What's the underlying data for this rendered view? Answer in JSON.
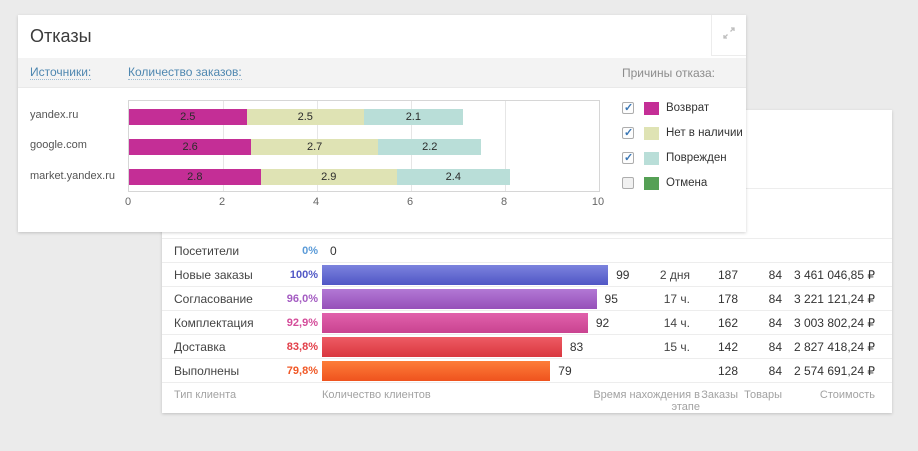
{
  "page": {
    "background": "#ebebeb"
  },
  "rejections_panel": {
    "title": "Отказы",
    "sources_link": "Источники:",
    "orders_link": "Количество заказов:",
    "legend_title": "Причины отказа:",
    "legend": [
      {
        "label": "Возврат",
        "color": "#c42e96",
        "checked": true
      },
      {
        "label": "Нет в наличии",
        "color": "#dfe3b4",
        "checked": true
      },
      {
        "label": "Поврежден",
        "color": "#b9ded8",
        "checked": true
      },
      {
        "label": "Отмена",
        "color": "#55a055",
        "checked": false
      }
    ]
  },
  "funnel_panel": {
    "footer": {
      "col_client_type": "Тип клиента",
      "col_client_count": "Количество клиентов",
      "col_time": "Время нахождения в этапе",
      "col_orders": "Заказы",
      "col_items": "Товары",
      "col_cost": "Стоимость"
    }
  },
  "chart_data": [
    {
      "type": "bar",
      "orientation": "horizontal",
      "stacked": true,
      "title": "Отказы",
      "categories": [
        "yandex.ru",
        "google.com",
        "market.yandex.ru"
      ],
      "series": [
        {
          "name": "Возврат",
          "color": "#c42e96",
          "values": [
            2.5,
            2.6,
            2.8
          ]
        },
        {
          "name": "Нет в наличии",
          "color": "#dfe3b4",
          "values": [
            2.5,
            2.7,
            2.9
          ]
        },
        {
          "name": "Поврежден",
          "color": "#b9ded8",
          "values": [
            2.1,
            2.2,
            2.4
          ]
        }
      ],
      "xlim": [
        0,
        10
      ],
      "ticks": [
        0,
        2,
        4,
        6,
        8,
        10
      ],
      "grid": true,
      "legend_position": "right"
    },
    {
      "type": "bar",
      "orientation": "horizontal",
      "subtype": "funnel",
      "xlabel": "Количество клиентов",
      "rows": [
        {
          "label": "Посетители",
          "percent": "0%",
          "percent_color": "#5b9bd8",
          "value": 0,
          "time": "",
          "orders": "",
          "items": "",
          "cost": ""
        },
        {
          "label": "Новые заказы",
          "percent": "100%",
          "percent_color": "#5158c6",
          "value": 99,
          "bar": {
            "from": "#7c83de",
            "to": "#5056c5"
          },
          "time": "2 дня",
          "orders": 187,
          "items": 84,
          "cost": "3 461 046,85 ₽"
        },
        {
          "label": "Согласование",
          "percent": "96,0%",
          "percent_color": "#a45cc2",
          "value": 95,
          "bar": {
            "from": "#b278d5",
            "to": "#9650b9"
          },
          "time": "17 ч.",
          "orders": 178,
          "items": 84,
          "cost": "3 221 121,24 ₽"
        },
        {
          "label": "Комплектация",
          "percent": "92,9%",
          "percent_color": "#d44c9a",
          "value": 92,
          "bar": {
            "from": "#e161ac",
            "to": "#c94390"
          },
          "time": "14 ч.",
          "orders": 162,
          "items": 84,
          "cost": "3 003 802,24 ₽"
        },
        {
          "label": "Доставка",
          "percent": "83,8%",
          "percent_color": "#e23f49",
          "value": 83,
          "bar": {
            "from": "#ee5b64",
            "to": "#d9373f"
          },
          "time": "15 ч.",
          "orders": 142,
          "items": 84,
          "cost": "2 827 418,24 ₽"
        },
        {
          "label": "Выполнены",
          "percent": "79,8%",
          "percent_color": "#f05826",
          "value": 79,
          "bar": {
            "from": "#fd7d39",
            "to": "#ef531e"
          },
          "time": "",
          "orders": 128,
          "items": 84,
          "cost": "2 574 691,24 ₽"
        }
      ]
    }
  ]
}
